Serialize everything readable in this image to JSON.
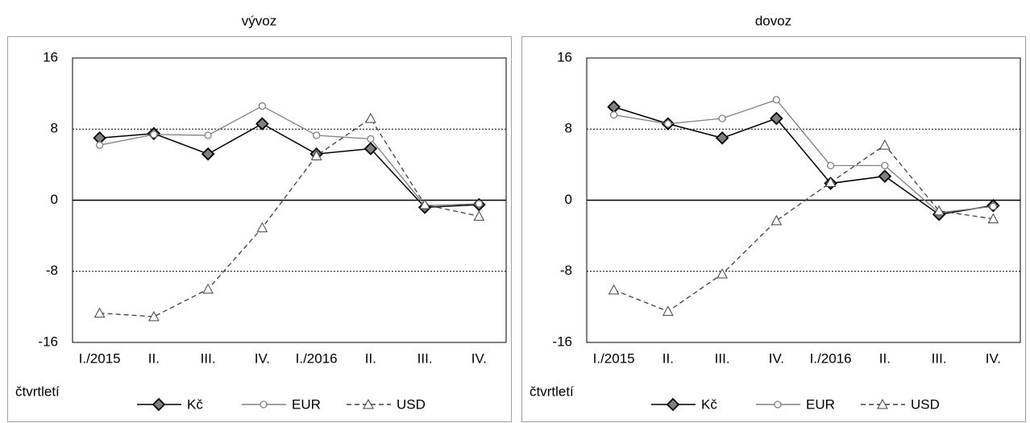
{
  "chart_data": [
    {
      "type": "line",
      "title": "vývoz",
      "xlabel": "čtvrtletí",
      "categories": [
        "I./2015",
        "II.",
        "III.",
        "IV.",
        "I./2016",
        "II.",
        "III.",
        "IV."
      ],
      "ylim": [
        -16,
        16
      ],
      "yticks": [
        -16,
        -8,
        0,
        8,
        16
      ],
      "grid": true,
      "series": [
        {
          "name": "Kč",
          "color": "#000000",
          "marker": "diamond",
          "values": [
            7,
            7.5,
            5.2,
            8.6,
            5.2,
            5.8,
            -0.8,
            -0.5
          ]
        },
        {
          "name": "EUR",
          "color": "#808080",
          "marker": "circle",
          "values": [
            6.2,
            7.4,
            7.3,
            10.6,
            7.3,
            6.9,
            -0.6,
            -0.4
          ]
        },
        {
          "name": "USD",
          "color": "#404040",
          "marker": "triangle",
          "dashed": true,
          "values": [
            -12.7,
            -13.1,
            -10,
            -3.1,
            5,
            9.2,
            -0.5,
            -1.8
          ]
        }
      ]
    },
    {
      "type": "line",
      "title": "dovoz",
      "xlabel": "čtvrtletí",
      "categories": [
        "I./2015",
        "II.",
        "III.",
        "IV.",
        "I./2016",
        "II.",
        "III.",
        "IV."
      ],
      "ylim": [
        -16,
        16
      ],
      "yticks": [
        -16,
        -8,
        0,
        8,
        16
      ],
      "grid": true,
      "series": [
        {
          "name": "Kč",
          "color": "#000000",
          "marker": "diamond",
          "values": [
            10.5,
            8.6,
            7,
            9.2,
            1.9,
            2.7,
            -1.6,
            -0.6
          ]
        },
        {
          "name": "EUR",
          "color": "#808080",
          "marker": "circle",
          "values": [
            9.6,
            8.6,
            9.2,
            11.3,
            3.9,
            3.9,
            -1.4,
            -0.7
          ]
        },
        {
          "name": "USD",
          "color": "#404040",
          "marker": "triangle",
          "dashed": true,
          "values": [
            -10.1,
            -12.5,
            -8.3,
            -2.3,
            2,
            6.2,
            -1.2,
            -2.1
          ]
        }
      ]
    }
  ]
}
